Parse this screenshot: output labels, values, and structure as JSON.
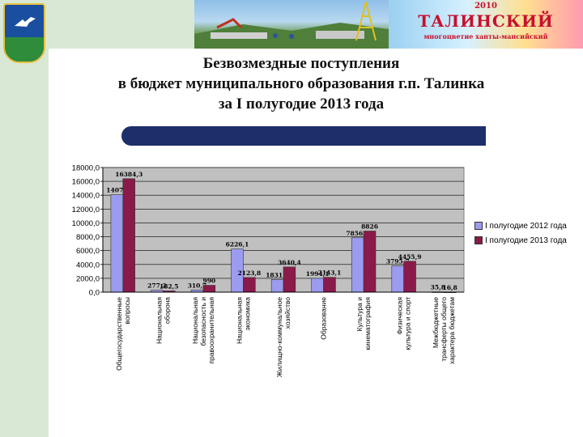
{
  "header": {
    "banner_line1": "2010",
    "banner_line2": "ТАЛИНСКИЙ",
    "banner_line3": "многоцветие ханты-мансийский"
  },
  "slide": {
    "title_line1": "Безвозмездные поступления",
    "title_line2": "в бюджет муниципального образования г.п. Талинка",
    "title_line3": "за I полугодие 2013 года"
  },
  "colors": {
    "series_2012": "#9b9bf0",
    "series_2013": "#8a1a4a",
    "plot_bg": "#c0c0c0",
    "accent_bar": "#1c2f6b",
    "sidebar": "#d8e8d4"
  },
  "chart_data": {
    "type": "bar",
    "categories": [
      "Общегосударственные вопросы",
      "Национальная оборона",
      "Национальная безопасность и правоохранительная",
      "Национальная экономика",
      "Жилищно-коммунальное хозяйство",
      "Образование",
      "Культура и кинематография",
      "Физическая культура и спорт",
      "Межбюджетные трансферты общего характера бюджетам"
    ],
    "series": [
      {
        "name": "I полугодие 2012 года",
        "values": [
          14072,
          277.2,
          310.7,
          6226.1,
          1831.5,
          1994.1,
          7856.1,
          3795.7,
          35.8
        ],
        "labels": [
          "14072",
          "277,2",
          "310,7",
          "6226,1",
          "1831,5",
          "1994,1",
          "7856,1",
          "3795,7",
          "35,8"
        ]
      },
      {
        "name": "I полугодие 2013 года",
        "values": [
          16384.3,
          182.5,
          990,
          2123.8,
          3640.4,
          2143.1,
          8826,
          4455.9,
          16.8
        ],
        "labels": [
          "16384,3",
          "182,5",
          "990",
          "2123,8",
          "3640,4",
          "2143,1",
          "8826",
          "4455,9",
          "16,8"
        ]
      }
    ],
    "yticks": [
      "0,0",
      "2000,0",
      "4000,0",
      "6000,0",
      "8000,0",
      "10000,0",
      "12000,0",
      "14000,0",
      "16000,0",
      "18000,0"
    ],
    "ylim": [
      0,
      18000
    ],
    "grid": true,
    "legend_position": "right"
  }
}
